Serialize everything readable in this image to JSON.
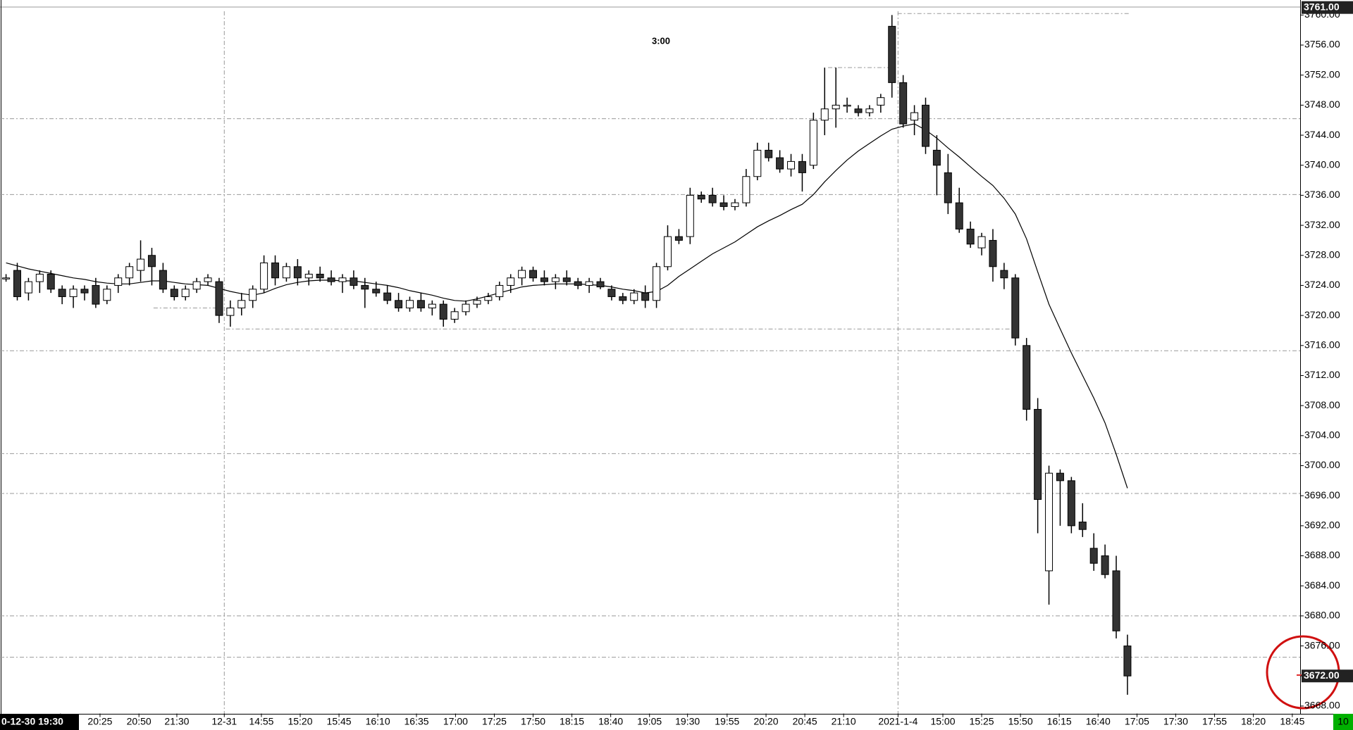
{
  "chart_data": {
    "type": "candlestick",
    "timeframe": "3:00",
    "ylim": [
      3667,
      3762
    ],
    "xlim": [
      -0.54,
      115.4
    ],
    "yticks": [
      {
        "value": 3668,
        "label": "3668.00"
      },
      {
        "value": 3672,
        "label": "3672.00"
      },
      {
        "value": 3676,
        "label": "3676.00"
      },
      {
        "value": 3680,
        "label": "3680.00"
      },
      {
        "value": 3684,
        "label": "3684.00"
      },
      {
        "value": 3688,
        "label": "3688.00"
      },
      {
        "value": 3692,
        "label": "3692.00"
      },
      {
        "value": 3696,
        "label": "3696.00"
      },
      {
        "value": 3700,
        "label": "3700.00"
      },
      {
        "value": 3704,
        "label": "3704.00"
      },
      {
        "value": 3708,
        "label": "3708.00"
      },
      {
        "value": 3712,
        "label": "3712.00"
      },
      {
        "value": 3716,
        "label": "3716.00"
      },
      {
        "value": 3720,
        "label": "3720.00"
      },
      {
        "value": 3724,
        "label": "3724.00"
      },
      {
        "value": 3728,
        "label": "3728.00"
      },
      {
        "value": 3732,
        "label": "3732.00"
      },
      {
        "value": 3736,
        "label": "3736.00"
      },
      {
        "value": 3740,
        "label": "3740.00"
      },
      {
        "value": 3744,
        "label": "3744.00"
      },
      {
        "value": 3748,
        "label": "3748.00"
      },
      {
        "value": 3752,
        "label": "3752.00"
      },
      {
        "value": 3756,
        "label": "3756.00"
      },
      {
        "value": 3760,
        "label": "3760.00"
      }
    ],
    "xticks": [
      {
        "value": 4.85,
        "label": "0-12-30 19:30"
      },
      {
        "value": 8.38,
        "label": "20:25"
      },
      {
        "value": 11.85,
        "label": "20:50"
      },
      {
        "value": 15.23,
        "label": "21:30"
      },
      {
        "value": 19.46,
        "label": "12-31"
      },
      {
        "value": 22.77,
        "label": "14:55"
      },
      {
        "value": 26.23,
        "label": "15:20"
      },
      {
        "value": 29.69,
        "label": "15:45"
      },
      {
        "value": 33.15,
        "label": "16:10"
      },
      {
        "value": 36.6,
        "label": "16:35"
      },
      {
        "value": 40.08,
        "label": "17:00"
      },
      {
        "value": 43.54,
        "label": "17:25"
      },
      {
        "value": 47,
        "label": "17:50"
      },
      {
        "value": 50.46,
        "label": "18:15"
      },
      {
        "value": 53.92,
        "label": "18:40"
      },
      {
        "value": 57.38,
        "label": "19:05"
      },
      {
        "value": 60.77,
        "label": "19:30"
      },
      {
        "value": 64.3,
        "label": "19:55"
      },
      {
        "value": 67.77,
        "label": "20:20"
      },
      {
        "value": 71.23,
        "label": "20:45"
      },
      {
        "value": 74.69,
        "label": "21:10"
      },
      {
        "value": 79.54,
        "label": "2021-1-4"
      },
      {
        "value": 83.54,
        "label": "15:00"
      },
      {
        "value": 87,
        "label": "15:25"
      },
      {
        "value": 90.46,
        "label": "15:50"
      },
      {
        "value": 93.92,
        "label": "16:15"
      },
      {
        "value": 97.38,
        "label": "16:40"
      },
      {
        "value": 100.85,
        "label": "17:05"
      },
      {
        "value": 104.3,
        "label": "17:30"
      },
      {
        "value": 107.77,
        "label": "17:55"
      },
      {
        "value": 111.23,
        "label": "18:20"
      },
      {
        "value": 114.7,
        "label": "18:45"
      }
    ],
    "separators": [
      19.46,
      79.54
    ],
    "levels": [
      3746.2,
      3736.1,
      3715.3,
      3701.6,
      3696.3,
      3680,
      3674.5
    ],
    "segments": [
      {
        "from": 79.5,
        "to": 100.2,
        "value": 3760.2
      },
      {
        "from": 73.3,
        "to": 79.1,
        "value": 3753
      },
      {
        "from": 19.6,
        "to": 89.8,
        "value": 3718.2
      },
      {
        "from": 13.15,
        "to": 19.3,
        "value": 3721
      }
    ],
    "price_labels": [
      {
        "value": 3761,
        "label": "3761.00"
      },
      {
        "value": 3672,
        "label": "3672.00"
      }
    ],
    "bar_countdown": "10",
    "up_color": "#ffffff",
    "down_color": "#333333",
    "ma_color": "#000000",
    "ohlc": [
      [
        3725,
        3725.5,
        3724.5,
        3725
      ],
      [
        3726,
        3727,
        3722,
        3722.5
      ],
      [
        3723,
        3725,
        3722,
        3724.5
      ],
      [
        3724.5,
        3726,
        3723,
        3725.5
      ],
      [
        3725.5,
        3726,
        3723,
        3723.5
      ],
      [
        3723.5,
        3724,
        3721.5,
        3722.5
      ],
      [
        3722.5,
        3724,
        3721,
        3723.5
      ],
      [
        3723.5,
        3724,
        3722,
        3723
      ],
      [
        3724,
        3725,
        3721,
        3721.5
      ],
      [
        3722,
        3724,
        3721.5,
        3723.5
      ],
      [
        3724,
        3725.5,
        3723,
        3725
      ],
      [
        3725,
        3727,
        3724,
        3726.5
      ],
      [
        3726,
        3730,
        3724.5,
        3727.5
      ],
      [
        3728,
        3729,
        3724,
        3726.5
      ],
      [
        3726,
        3727,
        3723,
        3723.5
      ],
      [
        3723.5,
        3724,
        3722,
        3722.5
      ],
      [
        3722.5,
        3724,
        3722,
        3723.5
      ],
      [
        3723.5,
        3725,
        3723,
        3724.5
      ],
      [
        3724.5,
        3725.5,
        3724,
        3725
      ],
      [
        3724.5,
        3725,
        3719,
        3720
      ],
      [
        3720,
        3722,
        3718.5,
        3721
      ],
      [
        3721,
        3723,
        3720,
        3722
      ],
      [
        3722,
        3724,
        3721,
        3723.5
      ],
      [
        3723.5,
        3728,
        3723,
        3727
      ],
      [
        3727,
        3728,
        3724,
        3725
      ],
      [
        3725,
        3727,
        3724.5,
        3726.5
      ],
      [
        3726.5,
        3727.5,
        3724,
        3725
      ],
      [
        3725,
        3726,
        3724,
        3725.5
      ],
      [
        3725.5,
        3726.5,
        3724.5,
        3725
      ],
      [
        3725,
        3726,
        3724,
        3724.5
      ],
      [
        3724.5,
        3725.5,
        3723,
        3725
      ],
      [
        3725,
        3726,
        3723.5,
        3724
      ],
      [
        3724,
        3725,
        3721,
        3723.5
      ],
      [
        3723.5,
        3724.5,
        3722.5,
        3723
      ],
      [
        3723,
        3724,
        3721.5,
        3722
      ],
      [
        3722,
        3723,
        3720.5,
        3721
      ],
      [
        3721,
        3722.5,
        3720.5,
        3722
      ],
      [
        3722,
        3723,
        3720.5,
        3721
      ],
      [
        3721,
        3722,
        3720,
        3721.5
      ],
      [
        3721.5,
        3722,
        3718.5,
        3719.5
      ],
      [
        3719.5,
        3721,
        3719,
        3720.5
      ],
      [
        3720.5,
        3722,
        3720,
        3721.5
      ],
      [
        3721.5,
        3722.5,
        3721,
        3722
      ],
      [
        3722,
        3723,
        3721.5,
        3722.5
      ],
      [
        3722.5,
        3724.5,
        3722,
        3724
      ],
      [
        3724,
        3725.5,
        3723,
        3725
      ],
      [
        3725,
        3726.5,
        3724,
        3726
      ],
      [
        3726,
        3726.5,
        3724.5,
        3725
      ],
      [
        3725,
        3726,
        3724,
        3724.5
      ],
      [
        3724.5,
        3725.5,
        3723.5,
        3725
      ],
      [
        3725,
        3726,
        3724,
        3724.5
      ],
      [
        3724.5,
        3725,
        3723.5,
        3724
      ],
      [
        3724,
        3725,
        3723,
        3724.5
      ],
      [
        3724.5,
        3725,
        3723.5,
        3723.8
      ],
      [
        3723.5,
        3724,
        3722,
        3722.5
      ],
      [
        3722.5,
        3723,
        3721.5,
        3722
      ],
      [
        3722,
        3723.5,
        3721.5,
        3723
      ],
      [
        3723,
        3724,
        3721,
        3722
      ],
      [
        3722,
        3727,
        3721,
        3726.5
      ],
      [
        3726.5,
        3732,
        3726,
        3730.5
      ],
      [
        3730.5,
        3731.5,
        3729.5,
        3730
      ],
      [
        3730.5,
        3737,
        3729.5,
        3736
      ],
      [
        3736,
        3736.5,
        3735,
        3735.5
      ],
      [
        3736,
        3737,
        3734.5,
        3735
      ],
      [
        3735,
        3736,
        3734,
        3734.5
      ],
      [
        3734.5,
        3735.5,
        3734,
        3735
      ],
      [
        3735,
        3739.5,
        3734.5,
        3738.5
      ],
      [
        3738.5,
        3743,
        3738,
        3742
      ],
      [
        3742,
        3743,
        3740.5,
        3741
      ],
      [
        3741,
        3742,
        3739,
        3739.5
      ],
      [
        3739.5,
        3741.5,
        3738.5,
        3740.5
      ],
      [
        3740.5,
        3741.5,
        3736.5,
        3739
      ],
      [
        3740,
        3747,
        3739.5,
        3746
      ],
      [
        3746,
        3753,
        3744,
        3747.5
      ],
      [
        3747.5,
        3753,
        3745,
        3748
      ],
      [
        3748,
        3749,
        3747,
        3748
      ],
      [
        3747.5,
        3748,
        3746.5,
        3747
      ],
      [
        3747,
        3748,
        3746.5,
        3747.5
      ],
      [
        3748,
        3749.5,
        3747,
        3749
      ],
      [
        3758.5,
        3760,
        3749,
        3751
      ],
      [
        3751,
        3752,
        3745,
        3745.5
      ],
      [
        3746,
        3748,
        3744,
        3747
      ],
      [
        3748,
        3749,
        3741.5,
        3742.5
      ],
      [
        3742,
        3744,
        3736,
        3740
      ],
      [
        3739,
        3741.5,
        3733.5,
        3735
      ],
      [
        3735,
        3737,
        3731,
        3731.5
      ],
      [
        3731.5,
        3732.5,
        3729,
        3729.5
      ],
      [
        3729,
        3731,
        3728,
        3730.5
      ],
      [
        3730,
        3731.5,
        3724.5,
        3726.5
      ],
      [
        3726,
        3727,
        3723.5,
        3725
      ],
      [
        3725,
        3725.5,
        3716,
        3717
      ],
      [
        3716,
        3717,
        3706,
        3707.5
      ],
      [
        3707.5,
        3709,
        3691,
        3695.5
      ],
      [
        3686,
        3700,
        3681.5,
        3699
      ],
      [
        3699,
        3699.5,
        3692,
        3698
      ],
      [
        3698,
        3698.5,
        3691,
        3692
      ],
      [
        3692.5,
        3695,
        3690.5,
        3691.5
      ],
      [
        3689,
        3691,
        3686,
        3687
      ],
      [
        3688,
        3689.5,
        3685,
        3685.5
      ],
      [
        3686,
        3688,
        3677,
        3678
      ],
      [
        3676,
        3677.5,
        3669.5,
        3672
      ]
    ],
    "ma": [
      3727,
      3726.6,
      3726.2,
      3725.9,
      3725.6,
      3725.3,
      3725,
      3724.8,
      3724.5,
      3724.3,
      3724.2,
      3724.2,
      3724.4,
      3724.6,
      3724.6,
      3724.4,
      3724.2,
      3724.1,
      3724,
      3723.6,
      3723.2,
      3722.9,
      3722.7,
      3723,
      3723.6,
      3724.1,
      3724.4,
      3724.6,
      3724.7,
      3724.7,
      3724.6,
      3724.6,
      3724.4,
      3724.2,
      3724,
      3723.7,
      3723.3,
      3723,
      3722.7,
      3722.3,
      3722,
      3721.9,
      3722.2,
      3722.6,
      3723,
      3723.4,
      3723.8,
      3724,
      3724.1,
      3724.2,
      3724.2,
      3724.2,
      3724.1,
      3724,
      3723.8,
      3723.5,
      3723.3,
      3723,
      3723.2,
      3724,
      3725.2,
      3726.2,
      3727.2,
      3728.2,
      3729,
      3729.8,
      3730.8,
      3731.8,
      3732.6,
      3733.3,
      3734.1,
      3734.8,
      3736.1,
      3737.8,
      3739.3,
      3740.7,
      3741.9,
      3742.9,
      3743.9,
      3744.8,
      3745.2,
      3745.5,
      3744.7,
      3743.6,
      3742.3,
      3741.1,
      3739.8,
      3738.5,
      3737.3,
      3735.6,
      3733.5,
      3730.2,
      3725.8,
      3721.5,
      3718.2,
      3715,
      3712,
      3709,
      3705.7,
      3701.5,
      3697
    ]
  }
}
